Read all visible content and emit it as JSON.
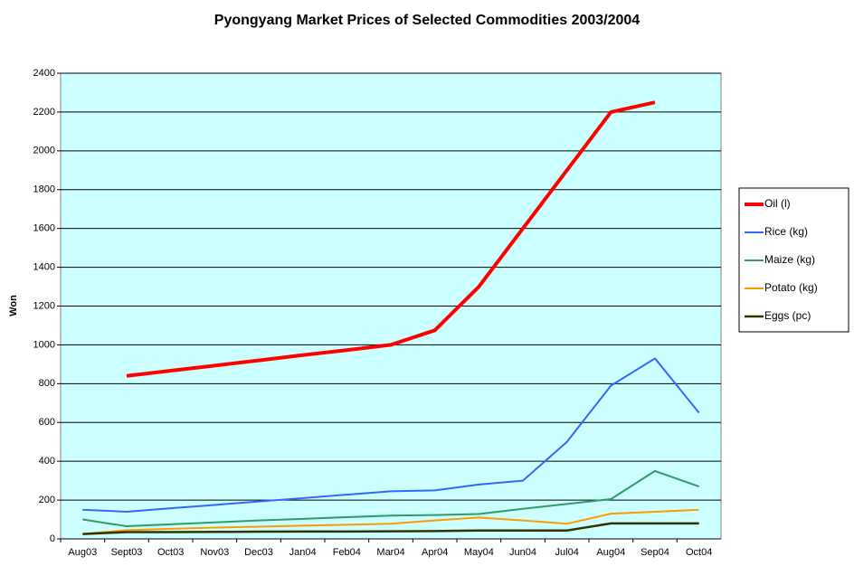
{
  "chart_data": {
    "type": "line",
    "title": "Pyongyang Market Prices of Selected Commodities 2003/2004",
    "y_label": "Won",
    "categories": [
      "Aug03",
      "Sept03",
      "Oct03",
      "Nov03",
      "Dec03",
      "Jan04",
      "Feb04",
      "Mar04",
      "Apr04",
      "May04",
      "Jun04",
      "Jul04",
      "Aug04",
      "Sep04",
      "Oct04"
    ],
    "series": [
      {
        "name": "Oil (l)",
        "color": "#ff0000",
        "line_width": 4,
        "values": [
          null,
          840,
          867,
          893,
          920,
          947,
          973,
          1000,
          1075,
          1300,
          1600,
          1900,
          2200,
          2250,
          null
        ]
      },
      {
        "name": "Rice (kg)",
        "color": "#3366ff",
        "line_width": 2,
        "values": [
          150,
          140,
          158,
          175,
          193,
          210,
          228,
          245,
          250,
          280,
          300,
          500,
          790,
          930,
          650
        ]
      },
      {
        "name": "Maize (kg)",
        "color": "#339966",
        "line_width": 2,
        "values": [
          100,
          65,
          75,
          85,
          95,
          103,
          112,
          120,
          123,
          128,
          155,
          180,
          205,
          350,
          270
        ]
      },
      {
        "name": "Potato (kg)",
        "color": "#ff9900",
        "line_width": 2,
        "values": [
          25,
          45,
          52,
          58,
          63,
          68,
          73,
          78,
          95,
          110,
          95,
          78,
          130,
          140,
          150
        ]
      },
      {
        "name": "Eggs (pc)",
        "color": "#333300",
        "line_width": 2.5,
        "values": [
          25,
          35,
          35,
          36,
          37,
          38,
          38,
          39,
          40,
          43,
          43,
          43,
          80,
          80,
          80
        ]
      }
    ],
    "ylim": [
      0,
      2400
    ],
    "yticks": [
      0,
      200,
      400,
      600,
      800,
      1000,
      1200,
      1400,
      1600,
      1800,
      2000,
      2200,
      2400
    ],
    "grid": true,
    "plot_background": "#ccffff",
    "legend": "right"
  }
}
